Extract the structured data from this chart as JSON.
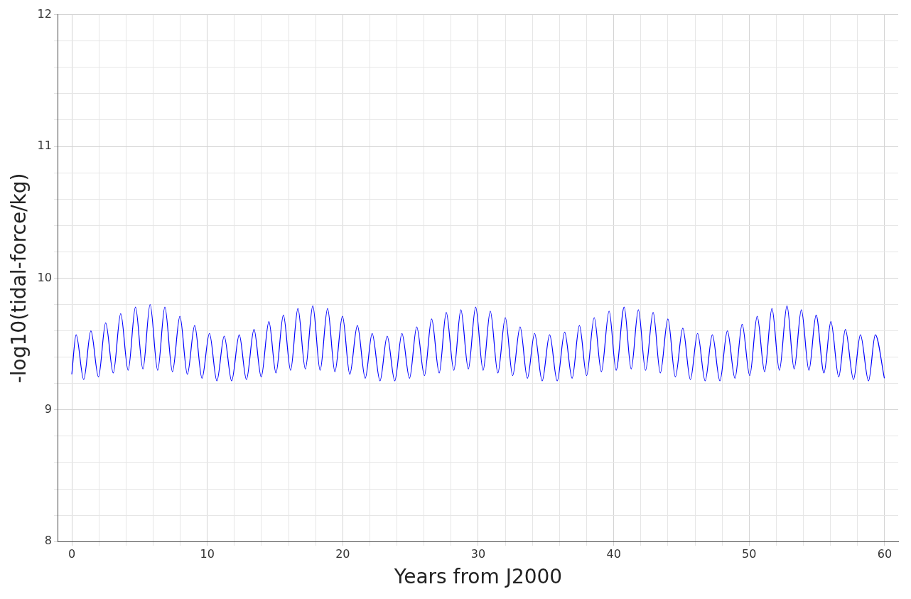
{
  "chart_data": {
    "type": "line",
    "xlabel": "Years from J2000",
    "ylabel": "-log10(tidal-force/kg)",
    "xlim": [
      -1,
      61
    ],
    "ylim": [
      8,
      12
    ],
    "xticks": [
      0,
      {
        "value": 2,
        "label": null
      },
      {
        "value": 4,
        "label": null
      },
      {
        "value": 6,
        "label": null
      },
      {
        "value": 8,
        "label": null
      },
      10,
      {
        "value": 12,
        "label": null
      },
      {
        "value": 14,
        "label": null
      },
      {
        "value": 16,
        "label": null
      },
      {
        "value": 18,
        "label": null
      },
      20,
      {
        "value": 22,
        "label": null
      },
      {
        "value": 24,
        "label": null
      },
      {
        "value": 26,
        "label": null
      },
      {
        "value": 28,
        "label": null
      },
      30,
      {
        "value": 32,
        "label": null
      },
      {
        "value": 34,
        "label": null
      },
      {
        "value": 36,
        "label": null
      },
      {
        "value": 38,
        "label": null
      },
      40,
      {
        "value": 42,
        "label": null
      },
      {
        "value": 44,
        "label": null
      },
      {
        "value": 46,
        "label": null
      },
      {
        "value": 48,
        "label": null
      },
      50,
      {
        "value": 52,
        "label": null
      },
      {
        "value": 54,
        "label": null
      },
      {
        "value": 56,
        "label": null
      },
      {
        "value": 58,
        "label": null
      },
      60
    ],
    "yticks": [
      8,
      {
        "value": 8.2,
        "label": null
      },
      {
        "value": 8.4,
        "label": null
      },
      {
        "value": 8.6,
        "label": null
      },
      {
        "value": 8.8,
        "label": null
      },
      9,
      {
        "value": 9.2,
        "label": null
      },
      {
        "value": 9.4,
        "label": null
      },
      {
        "value": 9.6,
        "label": null
      },
      {
        "value": 9.8,
        "label": null
      },
      10,
      {
        "value": 10.2,
        "label": null
      },
      {
        "value": 10.4,
        "label": null
      },
      {
        "value": 10.6,
        "label": null
      },
      {
        "value": 10.8,
        "label": null
      },
      11,
      {
        "value": 11.2,
        "label": null
      },
      {
        "value": 11.4,
        "label": null
      },
      {
        "value": 11.6,
        "label": null
      },
      {
        "value": 11.8,
        "label": null
      },
      12
    ],
    "grid": true,
    "legend": false,
    "marker": "none",
    "line_style": "solid",
    "series": [
      {
        "color": "#0000ff",
        "x": [
          0,
          0.32,
          0.88,
          1.41,
          1.97,
          2.5,
          3.06,
          3.61,
          4.16,
          4.7,
          5.25,
          5.78,
          6.34,
          6.87,
          7.43,
          7.98,
          8.53,
          9.07,
          9.61,
          10.16,
          10.71,
          11.25,
          11.8,
          12.36,
          12.89,
          13.45,
          13.98,
          14.55,
          15.07,
          15.62,
          16.15,
          16.69,
          17.24,
          17.79,
          18.33,
          18.88,
          19.42,
          19.98,
          20.52,
          21.08,
          21.66,
          22.17,
          22.75,
          23.28,
          23.84,
          24.37,
          24.93,
          25.46,
          26.03,
          26.56,
          27.12,
          27.64,
          28.2,
          28.72,
          29.27,
          29.81,
          30.36,
          30.89,
          31.45,
          32,
          32.54,
          33.09,
          33.63,
          34.16,
          34.72,
          35.27,
          35.83,
          36.38,
          36.93,
          37.47,
          38,
          38.56,
          39.09,
          39.66,
          40.18,
          40.77,
          41.29,
          41.82,
          42.35,
          42.91,
          43.44,
          44,
          44.55,
          45.1,
          45.66,
          46.19,
          46.75,
          47.28,
          47.84,
          48.39,
          48.95,
          49.48,
          50.04,
          50.59,
          51.14,
          51.68,
          52.23,
          52.79,
          53.32,
          53.85,
          54.41,
          54.94,
          55.52,
          56.03,
          56.61,
          57.1,
          57.7,
          58.21,
          58.81,
          59.31,
          59.98
        ],
        "values": [
          9.27,
          9.57,
          9.23,
          9.6,
          9.25,
          9.66,
          9.28,
          9.73,
          9.3,
          9.78,
          9.31,
          9.8,
          9.3,
          9.78,
          9.29,
          9.71,
          9.27,
          9.64,
          9.24,
          9.58,
          9.22,
          9.56,
          9.22,
          9.57,
          9.23,
          9.61,
          9.25,
          9.67,
          9.28,
          9.72,
          9.3,
          9.77,
          9.31,
          9.79,
          9.3,
          9.77,
          9.29,
          9.71,
          9.27,
          9.64,
          9.24,
          9.58,
          9.22,
          9.56,
          9.22,
          9.58,
          9.24,
          9.63,
          9.26,
          9.69,
          9.28,
          9.74,
          9.3,
          9.76,
          9.31,
          9.78,
          9.3,
          9.75,
          9.28,
          9.7,
          9.26,
          9.63,
          9.24,
          9.58,
          9.22,
          9.57,
          9.22,
          9.59,
          9.24,
          9.64,
          9.26,
          9.7,
          9.29,
          9.75,
          9.3,
          9.78,
          9.31,
          9.76,
          9.3,
          9.74,
          9.28,
          9.69,
          9.25,
          9.62,
          9.23,
          9.58,
          9.22,
          9.57,
          9.22,
          9.6,
          9.24,
          9.65,
          9.26,
          9.71,
          9.29,
          9.77,
          9.3,
          9.79,
          9.31,
          9.76,
          9.3,
          9.72,
          9.28,
          9.67,
          9.25,
          9.61,
          9.23,
          9.57,
          9.22,
          9.57,
          9.24
        ]
      }
    ]
  }
}
